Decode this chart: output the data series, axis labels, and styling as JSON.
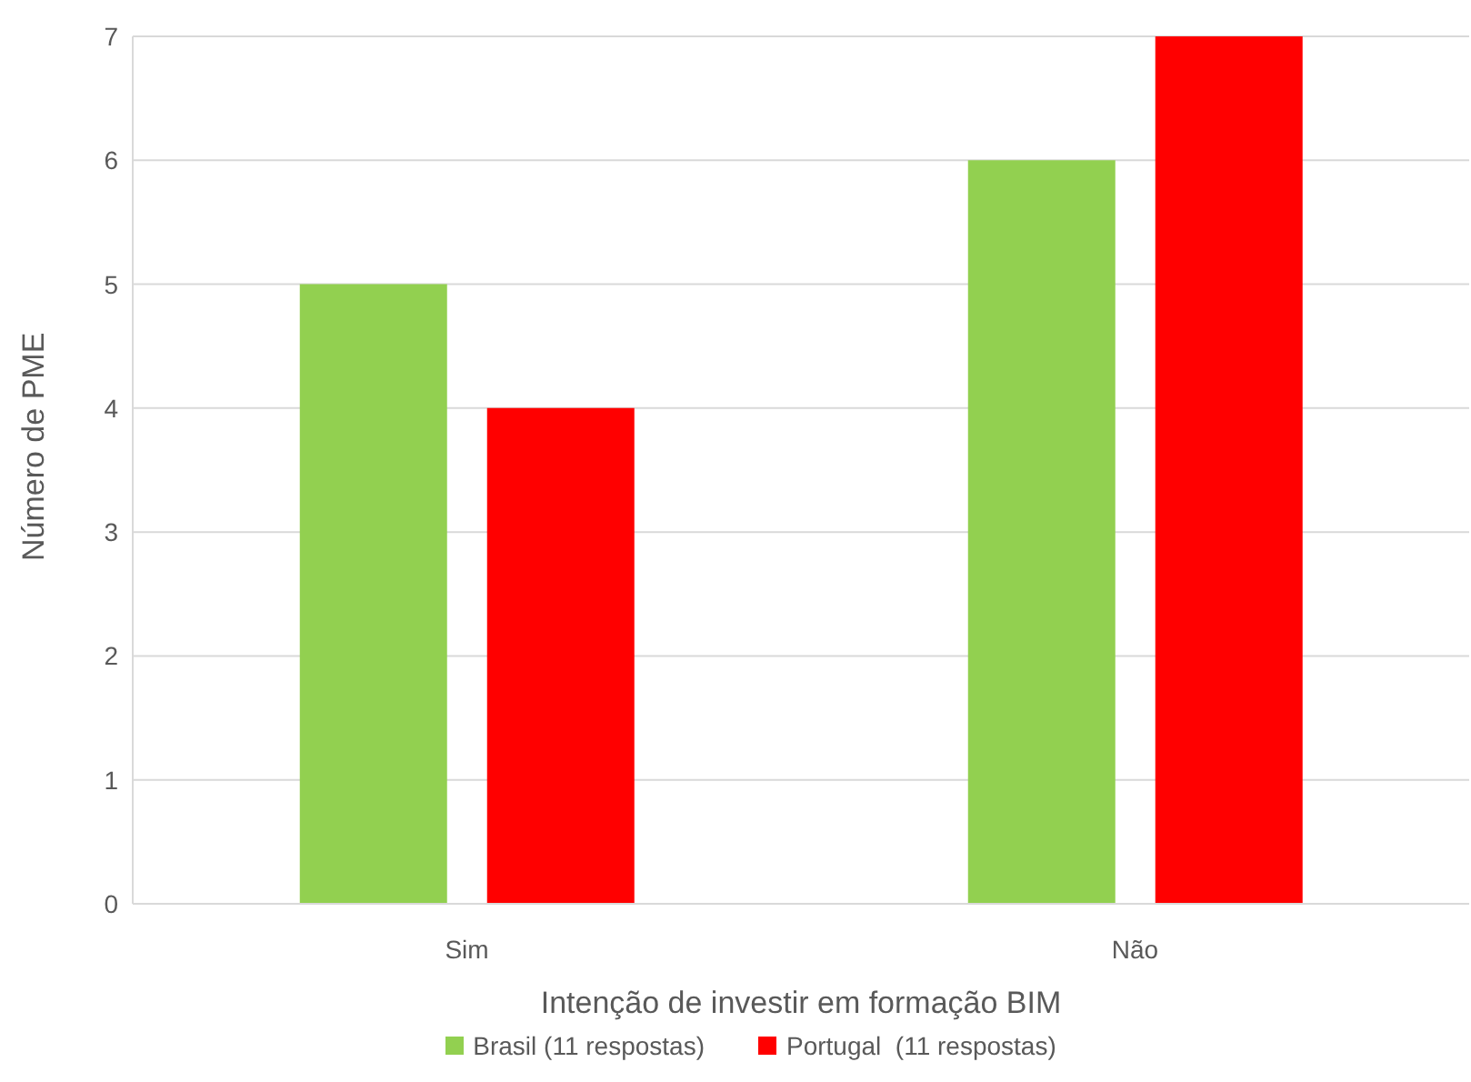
{
  "chart_data": {
    "type": "bar",
    "xlabel": "Intenção de investir em formação BIM",
    "ylabel": "Número de PME",
    "categories": [
      "Sim",
      "Não"
    ],
    "series": [
      {
        "name": "Brasil (11 respostas)",
        "color": "#92d050",
        "values": [
          5,
          6
        ]
      },
      {
        "name": "Portugal  (11 respostas)",
        "color": "#ff0000",
        "values": [
          4,
          7
        ]
      }
    ],
    "ylim": [
      0,
      7
    ],
    "yticks": [
      0,
      1,
      2,
      3,
      4,
      5,
      6,
      7
    ],
    "grid": "y",
    "legend": "bottom"
  }
}
